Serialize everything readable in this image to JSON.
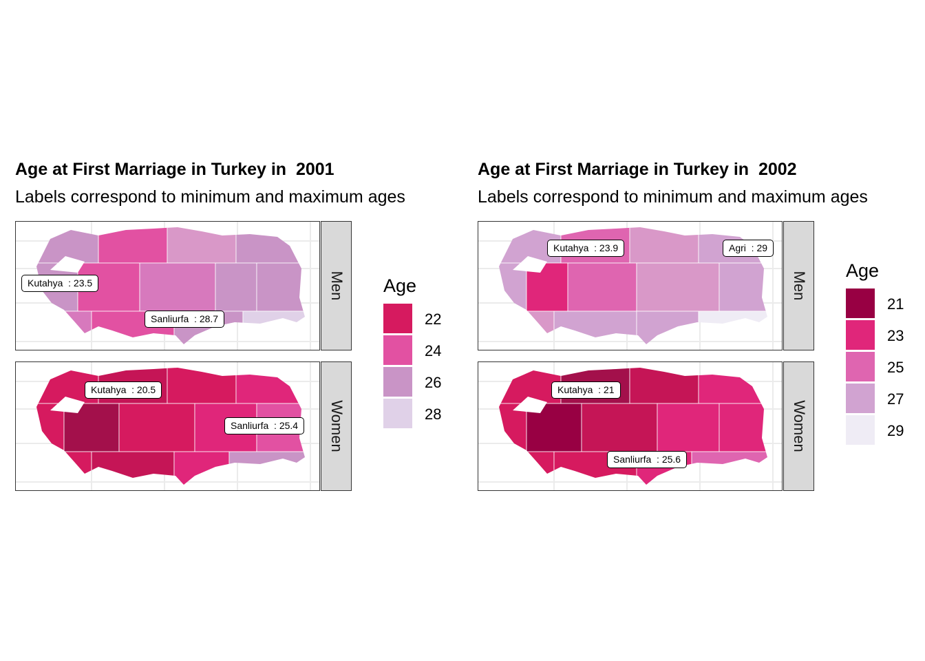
{
  "panels": [
    {
      "title": "Age at First Marriage in Turkey in  2001",
      "subtitle": "Labels correspond to minimum and maximum ages",
      "facets": [
        {
          "name": "Men",
          "labels": [
            {
              "text": "Kutahya  : 23.5"
            },
            {
              "text": "Sanliurfa  : 28.7"
            }
          ]
        },
        {
          "name": "Women",
          "labels": [
            {
              "text": "Kutahya  : 20.5"
            },
            {
              "text": "Sanliurfa  : 25.4"
            }
          ]
        }
      ],
      "legend": {
        "title": "Age",
        "items": [
          {
            "label": "22",
            "color": "#d61a5f"
          },
          {
            "label": "24",
            "color": "#e251a2"
          },
          {
            "label": "26",
            "color": "#c994c6"
          },
          {
            "label": "28",
            "color": "#e0d1e8"
          }
        ]
      }
    },
    {
      "title": "Age at First Marriage in Turkey in  2002",
      "subtitle": "Labels correspond to minimum and maximum ages",
      "facets": [
        {
          "name": "Men",
          "labels": [
            {
              "text": "Kutahya  : 23.9"
            },
            {
              "text": "Agri  : 29"
            }
          ]
        },
        {
          "name": "Women",
          "labels": [
            {
              "text": "Kutahya  : 21"
            },
            {
              "text": "Sanliurfa  : 25.6"
            }
          ]
        }
      ],
      "legend": {
        "title": "Age",
        "items": [
          {
            "label": "21",
            "color": "#980043"
          },
          {
            "label": "23",
            "color": "#e0267a"
          },
          {
            "label": "25",
            "color": "#df65b0"
          },
          {
            "label": "27",
            "color": "#d1a3d1"
          },
          {
            "label": "29",
            "color": "#efecf5"
          }
        ]
      }
    }
  ]
}
